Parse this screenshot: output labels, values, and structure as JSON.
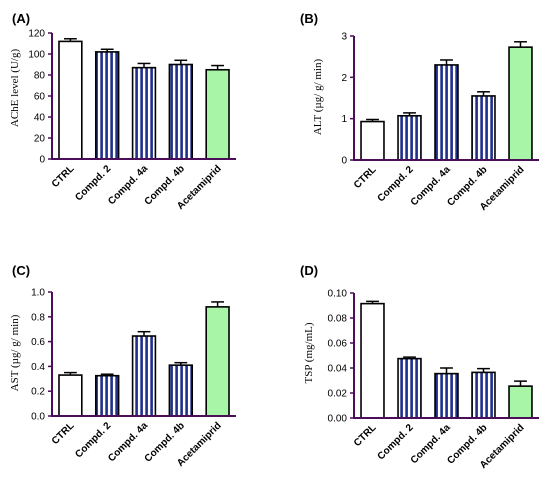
{
  "colors": {
    "axis": "#4b0f5a",
    "stripe": "#1f2f8a",
    "acetamiprid_fill": "#a8f5a8"
  },
  "chart_data": [
    {
      "panel": "(A)",
      "type": "bar",
      "ylabel": "AChE level (U/g)",
      "ylim": [
        0,
        120
      ],
      "yticks": [
        "0",
        "20",
        "40",
        "60",
        "80",
        "100",
        "120"
      ],
      "categories": [
        "CTRL",
        "Compd. 2",
        "Compd. 4a",
        "Compd. 4b",
        "Acetamiprid"
      ],
      "values": [
        112,
        102,
        87,
        90,
        85
      ],
      "errors": [
        2.5,
        2.5,
        4,
        4,
        4
      ],
      "grid": false
    },
    {
      "panel": "(B)",
      "type": "bar",
      "ylabel": "ALT (µg/ g/ min)",
      "ylim": [
        0,
        3
      ],
      "yticks": [
        "0",
        "1",
        "2",
        "3"
      ],
      "categories": [
        "CTRL",
        "Compd. 2",
        "Compd. 4a",
        "Compd. 4b",
        "Acetamiprid"
      ],
      "values": [
        0.93,
        1.07,
        2.3,
        1.55,
        2.73
      ],
      "errors": [
        0.05,
        0.07,
        0.12,
        0.1,
        0.13
      ],
      "grid": false
    },
    {
      "panel": "(C)",
      "type": "bar",
      "ylabel": "AST (µg/ g/ min)",
      "ylim": [
        0,
        1.0
      ],
      "yticks": [
        "0.0",
        "0.2",
        "0.4",
        "0.6",
        "0.8",
        "1.0"
      ],
      "categories": [
        "CTRL",
        "Compd. 2",
        "Compd. 4a",
        "Compd. 4b",
        "Acetamiprid"
      ],
      "values": [
        0.33,
        0.325,
        0.645,
        0.41,
        0.88
      ],
      "errors": [
        0.02,
        0.012,
        0.035,
        0.02,
        0.04
      ],
      "grid": false
    },
    {
      "panel": "(D)",
      "type": "bar",
      "ylabel": "TSP (mg/mL)",
      "ylim": [
        0,
        0.1
      ],
      "yticks": [
        "0.00",
        "0.02",
        "0.04",
        "0.06",
        "0.08",
        "0.10"
      ],
      "categories": [
        "CTRL",
        "Compd. 2",
        "Compd. 4a",
        "Compd. 4b",
        "Acetamiprid"
      ],
      "values": [
        0.0915,
        0.0475,
        0.0355,
        0.0365,
        0.0255
      ],
      "errors": [
        0.0018,
        0.0012,
        0.0045,
        0.003,
        0.004
      ],
      "grid": false
    }
  ]
}
